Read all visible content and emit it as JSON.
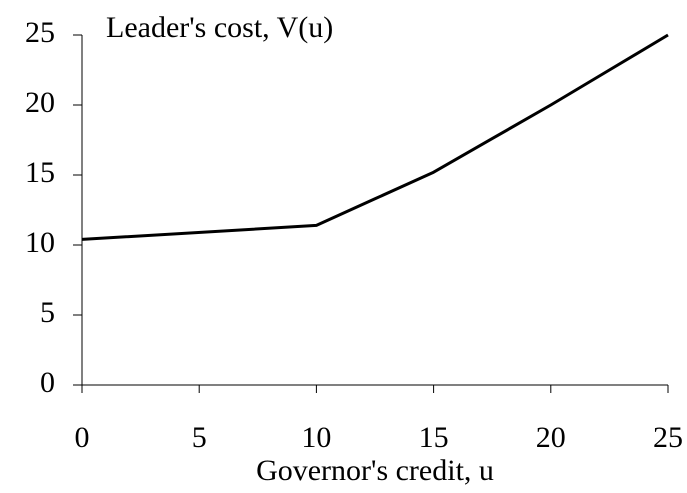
{
  "chart_data": {
    "type": "line",
    "title": "Leader's cost, V(u)",
    "x_label": "Governor's credit, u",
    "x": [
      0,
      10,
      12.5,
      15,
      17.5,
      20,
      22.5,
      25
    ],
    "values": [
      10.4,
      11.4,
      13.3,
      15.2,
      17.6,
      20.0,
      22.5,
      25
    ],
    "color": "#000000",
    "xlim": [
      0,
      25
    ],
    "xticks": [
      0,
      5,
      10,
      15,
      20,
      25
    ],
    "ylim": [
      0,
      25
    ],
    "yticks": [
      0,
      5,
      10,
      15,
      20,
      25
    ],
    "grid": false
  }
}
